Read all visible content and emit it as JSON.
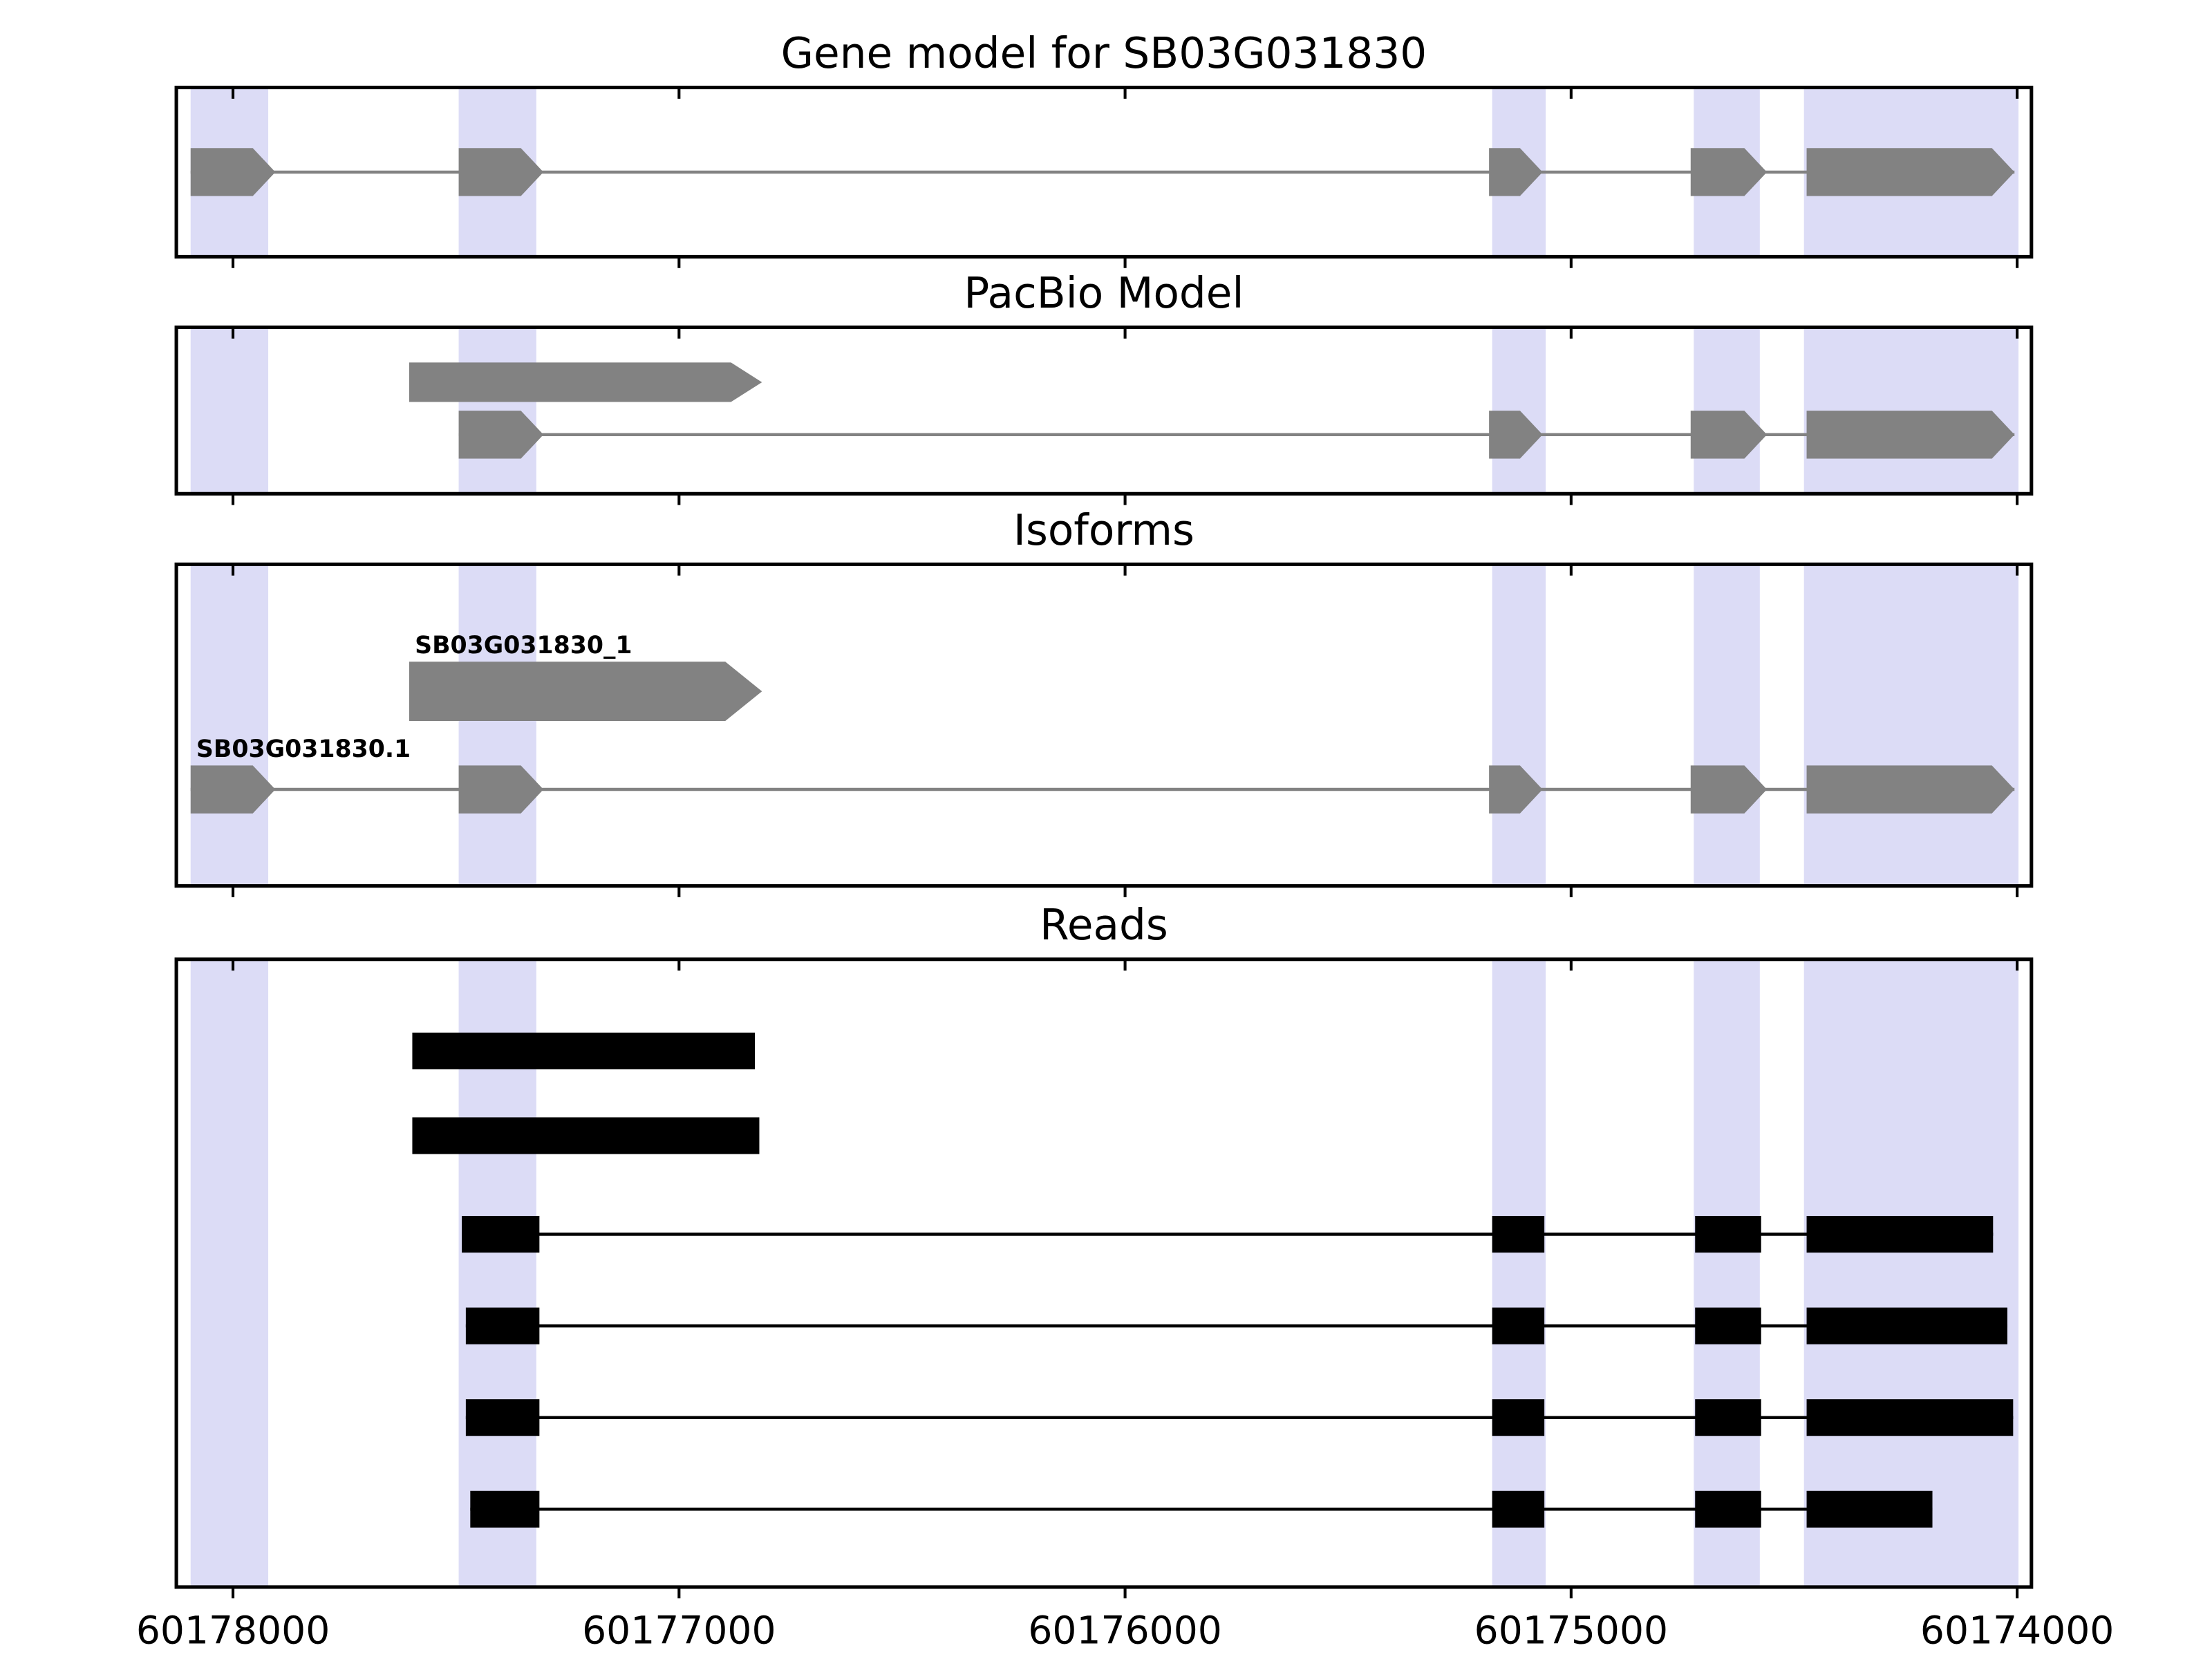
{
  "figure": {
    "background": "#ffffff"
  },
  "chart_data": {
    "type": "gene-model-tracks",
    "title": "Gene model for SB03G031830",
    "axis": {
      "orientation": "inverted",
      "x_left_value": 60178127,
      "x_right_value": 60173968,
      "ticks": [
        {
          "value": 60178000,
          "label": "60178000"
        },
        {
          "value": 60177000,
          "label": "60177000"
        },
        {
          "value": 60176000,
          "label": "60176000"
        },
        {
          "value": 60175000,
          "label": "60175000"
        },
        {
          "value": 60174000,
          "label": "60174000"
        }
      ]
    },
    "colors": {
      "feature": "#828282",
      "read": "#000000",
      "highlight": "#dcdcf6",
      "border": "#000000",
      "text": "#000000"
    },
    "highlight_regions": [
      {
        "start": 60178095,
        "end": 60177921
      },
      {
        "start": 60177494,
        "end": 60177320
      },
      {
        "start": 60175177,
        "end": 60175057
      },
      {
        "start": 60174725,
        "end": 60174577
      },
      {
        "start": 60174478,
        "end": 60173997
      }
    ],
    "panels": [
      {
        "id": "gene-model",
        "title": "Gene model for SB03G031830",
        "rows": [
          {
            "style": "model",
            "label": "",
            "exons": [
              [
                60178095,
                60177905
              ],
              [
                60177494,
                60177304
              ],
              [
                60175184,
                60175064
              ],
              [
                60174732,
                60174561
              ],
              [
                60174472,
                60174006
              ]
            ]
          }
        ]
      },
      {
        "id": "pacbio-model",
        "title": "PacBio Model",
        "rows": [
          {
            "style": "model-wide",
            "label": "",
            "exons": [
              [
                60177605,
                60176814
              ]
            ]
          },
          {
            "style": "model",
            "label": "",
            "exons": [
              [
                60177494,
                60177304
              ],
              [
                60175184,
                60175064
              ],
              [
                60174732,
                60174561
              ],
              [
                60174472,
                60174006
              ]
            ]
          }
        ]
      },
      {
        "id": "isoforms",
        "title": "Isoforms",
        "rows": [
          {
            "style": "model-big",
            "label": "SB03G031830_1",
            "exons": [
              [
                60177605,
                60176814
              ]
            ]
          },
          {
            "style": "model",
            "label": "SB03G031830.1",
            "exons": [
              [
                60178095,
                60177905
              ],
              [
                60177494,
                60177304
              ],
              [
                60175184,
                60175064
              ],
              [
                60174732,
                60174561
              ],
              [
                60174472,
                60174006
              ]
            ]
          }
        ]
      },
      {
        "id": "reads",
        "title": "Reads",
        "rows": [
          {
            "style": "read",
            "label": "",
            "exons": [
              [
                60177598,
                60176830
              ]
            ]
          },
          {
            "style": "read",
            "label": "",
            "exons": [
              [
                60177598,
                60176820
              ]
            ]
          },
          {
            "style": "read",
            "label": "",
            "exons": [
              [
                60177487,
                60177313
              ],
              [
                60175177,
                60175060
              ],
              [
                60174722,
                60174574
              ],
              [
                60174472,
                60174054
              ]
            ]
          },
          {
            "style": "read",
            "label": "",
            "exons": [
              [
                60177478,
                60177313
              ],
              [
                60175177,
                60175060
              ],
              [
                60174722,
                60174574
              ],
              [
                60174472,
                60174022
              ]
            ]
          },
          {
            "style": "read",
            "label": "",
            "exons": [
              [
                60177478,
                60177313
              ],
              [
                60175177,
                60175060
              ],
              [
                60174722,
                60174574
              ],
              [
                60174472,
                60174009
              ]
            ]
          },
          {
            "style": "read",
            "label": "",
            "exons": [
              [
                60177468,
                60177313
              ],
              [
                60175177,
                60175060
              ],
              [
                60174722,
                60174574
              ],
              [
                60174472,
                60174190
              ]
            ]
          }
        ]
      }
    ]
  }
}
